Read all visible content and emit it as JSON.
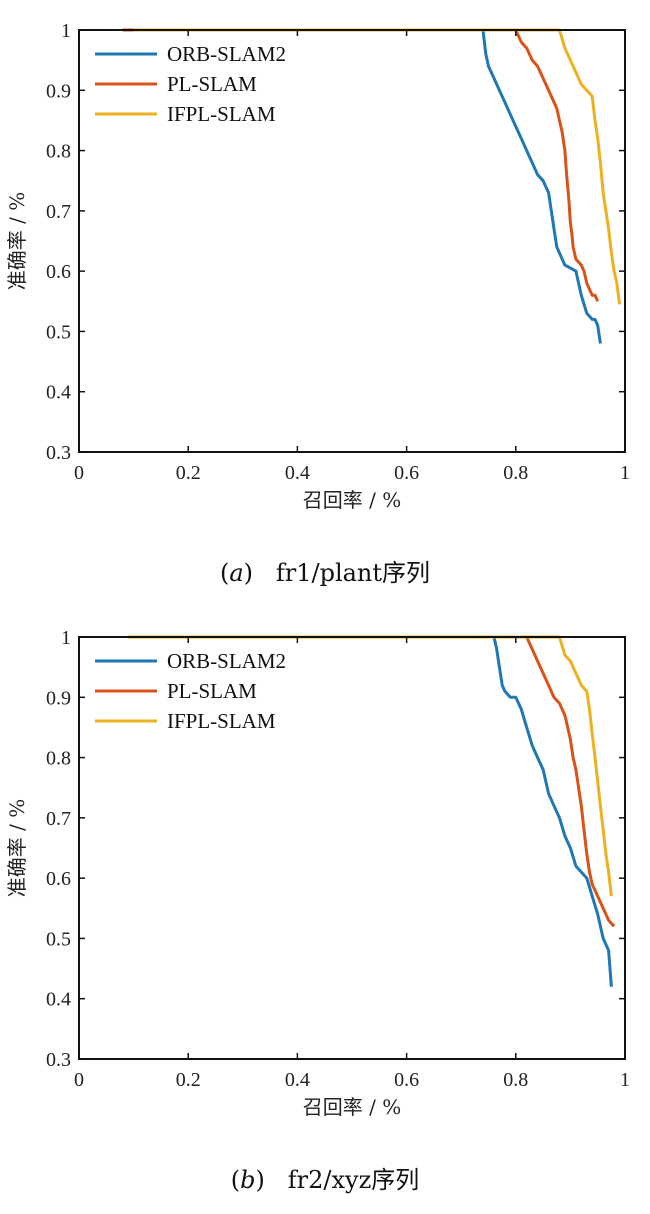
{
  "chart_data": [
    {
      "type": "line",
      "caption_letter": "a",
      "caption_text": "fr1/plant序列",
      "xlabel": "召回率 / %",
      "ylabel": "准确率 / %",
      "xlim": [
        0,
        1
      ],
      "ylim": [
        0.3,
        1
      ],
      "xticks": [
        "0",
        "0.2",
        "0.4",
        "0.6",
        "0.8",
        "1"
      ],
      "yticks": [
        "1",
        "0.9",
        "0.8",
        "0.7",
        "0.6",
        "0.5",
        "0.4",
        "0.3"
      ],
      "grid": false,
      "legend_position": "top-left",
      "series": [
        {
          "name": "ORB-SLAM2",
          "color": "#1f77b4",
          "points": [
            [
              0.08,
              1
            ],
            [
              0.74,
              1
            ],
            [
              0.745,
              0.96
            ],
            [
              0.75,
              0.94
            ],
            [
              0.76,
              0.92
            ],
            [
              0.77,
              0.9
            ],
            [
              0.78,
              0.88
            ],
            [
              0.79,
              0.86
            ],
            [
              0.8,
              0.84
            ],
            [
              0.81,
              0.82
            ],
            [
              0.82,
              0.8
            ],
            [
              0.83,
              0.78
            ],
            [
              0.84,
              0.76
            ],
            [
              0.85,
              0.75
            ],
            [
              0.86,
              0.73
            ],
            [
              0.865,
              0.7
            ],
            [
              0.87,
              0.67
            ],
            [
              0.875,
              0.64
            ],
            [
              0.88,
              0.63
            ],
            [
              0.89,
              0.61
            ],
            [
              0.91,
              0.6
            ],
            [
              0.915,
              0.58
            ],
            [
              0.92,
              0.56
            ],
            [
              0.93,
              0.53
            ],
            [
              0.94,
              0.52
            ],
            [
              0.945,
              0.52
            ],
            [
              0.95,
              0.51
            ],
            [
              0.955,
              0.48
            ]
          ]
        },
        {
          "name": "PL-SLAM",
          "color": "#d95319",
          "points": [
            [
              0.08,
              1
            ],
            [
              0.8,
              1
            ],
            [
              0.81,
              0.98
            ],
            [
              0.82,
              0.97
            ],
            [
              0.83,
              0.95
            ],
            [
              0.84,
              0.94
            ],
            [
              0.85,
              0.92
            ],
            [
              0.86,
              0.9
            ],
            [
              0.87,
              0.88
            ],
            [
              0.875,
              0.87
            ],
            [
              0.88,
              0.85
            ],
            [
              0.885,
              0.83
            ],
            [
              0.89,
              0.8
            ],
            [
              0.893,
              0.76
            ],
            [
              0.897,
              0.72
            ],
            [
              0.9,
              0.68
            ],
            [
              0.903,
              0.66
            ],
            [
              0.905,
              0.64
            ],
            [
              0.91,
              0.62
            ],
            [
              0.92,
              0.61
            ],
            [
              0.925,
              0.6
            ],
            [
              0.93,
              0.58
            ],
            [
              0.935,
              0.57
            ],
            [
              0.94,
              0.56
            ],
            [
              0.945,
              0.56
            ],
            [
              0.95,
              0.55
            ]
          ]
        },
        {
          "name": "IFPL-SLAM",
          "color": "#edb120",
          "points": [
            [
              0.1,
              1
            ],
            [
              0.88,
              1
            ],
            [
              0.89,
              0.97
            ],
            [
              0.9,
              0.95
            ],
            [
              0.91,
              0.93
            ],
            [
              0.92,
              0.91
            ],
            [
              0.93,
              0.9
            ],
            [
              0.94,
              0.89
            ],
            [
              0.945,
              0.85
            ],
            [
              0.95,
              0.82
            ],
            [
              0.955,
              0.78
            ],
            [
              0.96,
              0.73
            ],
            [
              0.965,
              0.7
            ],
            [
              0.97,
              0.67
            ],
            [
              0.975,
              0.63
            ],
            [
              0.98,
              0.6
            ],
            [
              0.985,
              0.58
            ],
            [
              0.988,
              0.56
            ],
            [
              0.99,
              0.545
            ]
          ]
        }
      ]
    },
    {
      "type": "line",
      "caption_letter": "b",
      "caption_text": "fr2/xyz序列",
      "xlabel": "召回率 / %",
      "ylabel": "准确率 / %",
      "xlim": [
        0,
        1
      ],
      "ylim": [
        0.3,
        1
      ],
      "xticks": [
        "0",
        "0.2",
        "0.4",
        "0.6",
        "0.8",
        "1"
      ],
      "yticks": [
        "1",
        "0.9",
        "0.8",
        "0.7",
        "0.6",
        "0.5",
        "0.4",
        "0.3"
      ],
      "grid": false,
      "legend_position": "top-left",
      "series": [
        {
          "name": "ORB-SLAM2",
          "color": "#1f77b4",
          "points": [
            [
              0.09,
              1
            ],
            [
              0.76,
              1
            ],
            [
              0.765,
              0.98
            ],
            [
              0.77,
              0.95
            ],
            [
              0.775,
              0.92
            ],
            [
              0.78,
              0.91
            ],
            [
              0.79,
              0.9
            ],
            [
              0.8,
              0.9
            ],
            [
              0.81,
              0.88
            ],
            [
              0.82,
              0.85
            ],
            [
              0.83,
              0.82
            ],
            [
              0.84,
              0.8
            ],
            [
              0.85,
              0.78
            ],
            [
              0.86,
              0.74
            ],
            [
              0.87,
              0.72
            ],
            [
              0.88,
              0.7
            ],
            [
              0.89,
              0.67
            ],
            [
              0.9,
              0.65
            ],
            [
              0.91,
              0.62
            ],
            [
              0.92,
              0.61
            ],
            [
              0.93,
              0.6
            ],
            [
              0.94,
              0.57
            ],
            [
              0.95,
              0.54
            ],
            [
              0.96,
              0.5
            ],
            [
              0.97,
              0.48
            ],
            [
              0.975,
              0.42
            ]
          ]
        },
        {
          "name": "PL-SLAM",
          "color": "#d95319",
          "points": [
            [
              0.09,
              1
            ],
            [
              0.82,
              1
            ],
            [
              0.83,
              0.98
            ],
            [
              0.84,
              0.96
            ],
            [
              0.85,
              0.94
            ],
            [
              0.86,
              0.92
            ],
            [
              0.87,
              0.9
            ],
            [
              0.88,
              0.89
            ],
            [
              0.89,
              0.87
            ],
            [
              0.895,
              0.85
            ],
            [
              0.9,
              0.83
            ],
            [
              0.905,
              0.8
            ],
            [
              0.91,
              0.78
            ],
            [
              0.915,
              0.75
            ],
            [
              0.92,
              0.72
            ],
            [
              0.925,
              0.68
            ],
            [
              0.93,
              0.64
            ],
            [
              0.935,
              0.61
            ],
            [
              0.94,
              0.59
            ],
            [
              0.95,
              0.57
            ],
            [
              0.96,
              0.55
            ],
            [
              0.97,
              0.53
            ],
            [
              0.98,
              0.52
            ]
          ]
        },
        {
          "name": "IFPL-SLAM",
          "color": "#edb120",
          "points": [
            [
              0.09,
              1
            ],
            [
              0.88,
              1
            ],
            [
              0.89,
              0.97
            ],
            [
              0.9,
              0.96
            ],
            [
              0.91,
              0.94
            ],
            [
              0.92,
              0.92
            ],
            [
              0.93,
              0.91
            ],
            [
              0.935,
              0.88
            ],
            [
              0.94,
              0.84
            ],
            [
              0.945,
              0.8
            ],
            [
              0.95,
              0.76
            ],
            [
              0.955,
              0.72
            ],
            [
              0.96,
              0.68
            ],
            [
              0.965,
              0.64
            ],
            [
              0.97,
              0.61
            ],
            [
              0.975,
              0.57
            ]
          ]
        }
      ]
    }
  ]
}
